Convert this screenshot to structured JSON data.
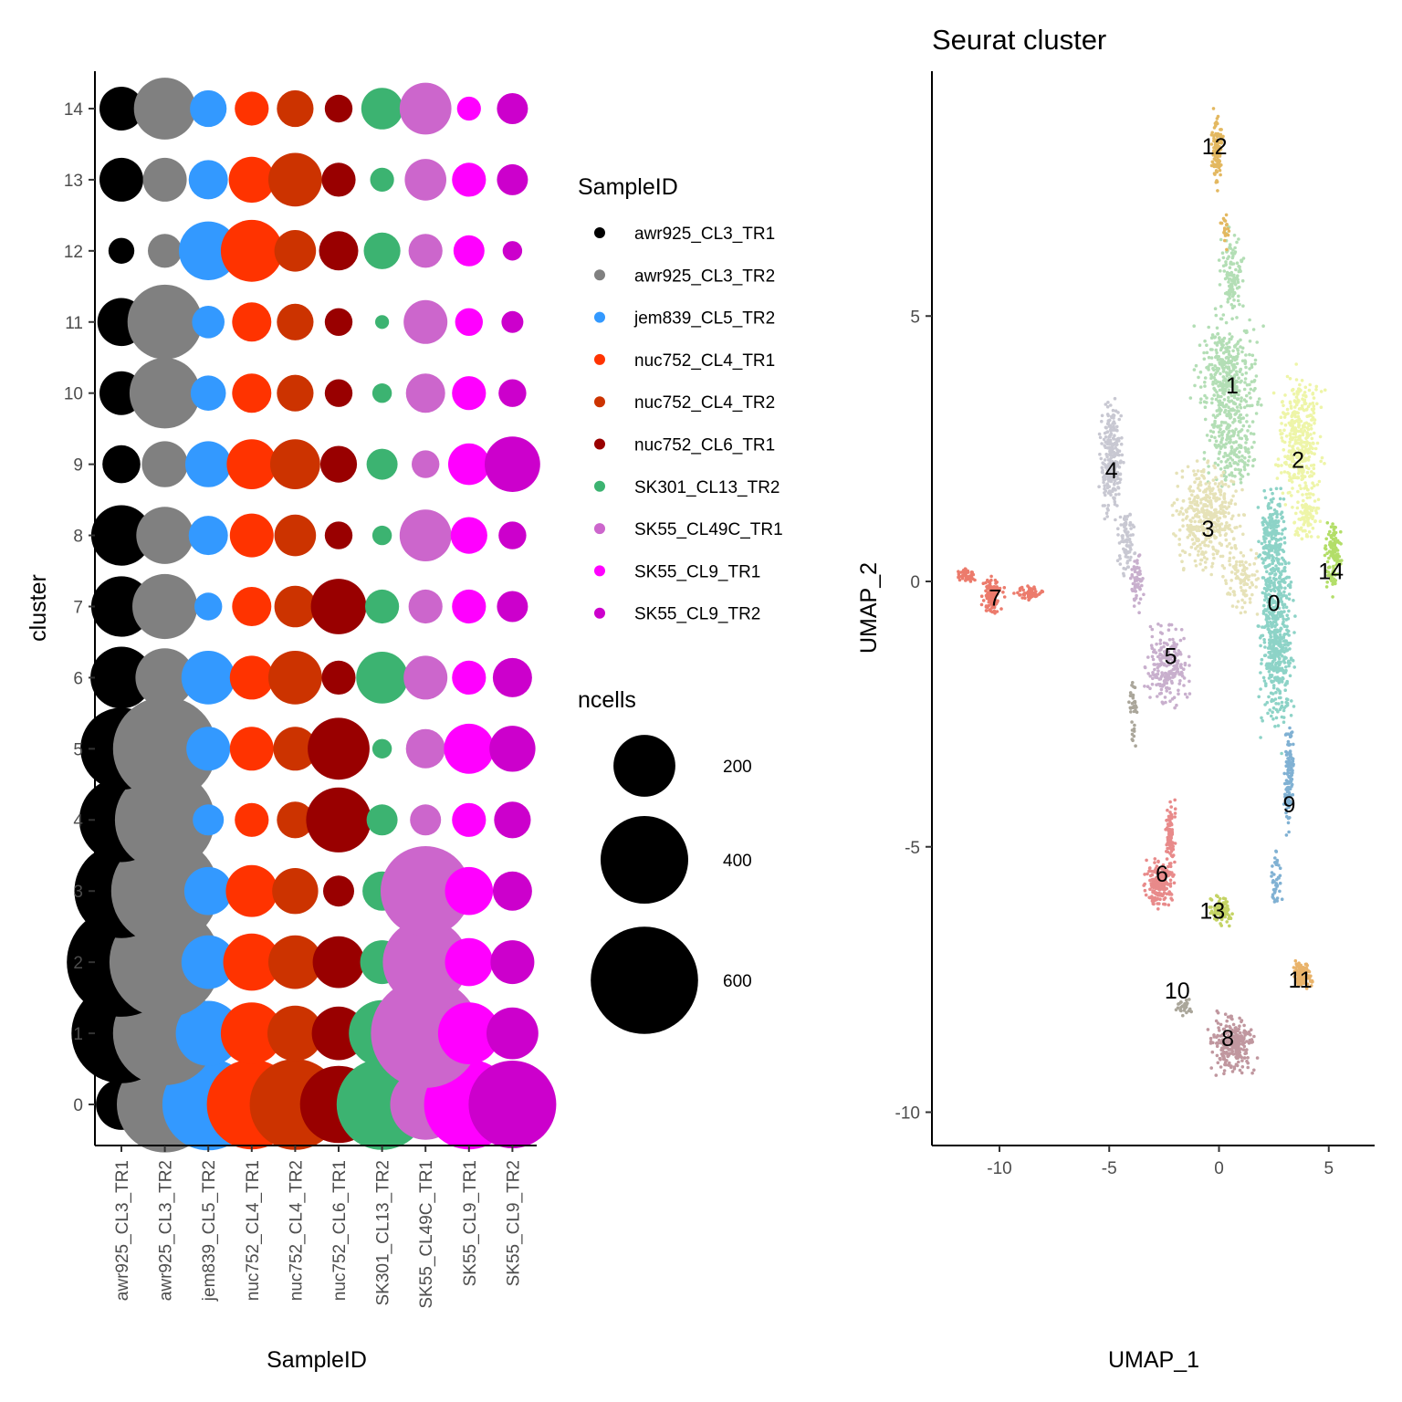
{
  "dotplot": {
    "xlabel": "SampleID",
    "ylabel": "cluster",
    "samples": [
      "awr925_CL3_TR1",
      "awr925_CL3_TR2",
      "jem839_CL5_TR2",
      "nuc752_CL4_TR1",
      "nuc752_CL4_TR2",
      "nuc752_CL6_TR1",
      "SK301_CL13_TR2",
      "SK55_CL49C_TR1",
      "SK55_CL9_TR1",
      "SK55_CL9_TR2"
    ],
    "sample_colors": [
      "#000000",
      "#808080",
      "#3399FF",
      "#FF3300",
      "#CC3300",
      "#990000",
      "#3CB371",
      "#CC66CC",
      "#FF00FF",
      "#CC00CC"
    ],
    "clusters": [
      "0",
      "1",
      "2",
      "3",
      "4",
      "5",
      "6",
      "7",
      "8",
      "9",
      "10",
      "11",
      "12",
      "13",
      "14"
    ]
  },
  "legend": {
    "sample_title": "SampleID",
    "size_title": "ncells",
    "size_breaks": [
      {
        "value": 200,
        "label": "200"
      },
      {
        "value": 400,
        "label": "400"
      },
      {
        "value": 600,
        "label": "600"
      }
    ]
  },
  "umap": {
    "title": "Seurat cluster",
    "xlabel": "UMAP_1",
    "ylabel": "UMAP_2",
    "xticks": [
      {
        "v": -10,
        "label": "-10"
      },
      {
        "v": -5,
        "label": "-5"
      },
      {
        "v": 0,
        "label": "0"
      },
      {
        "v": 5,
        "label": "5"
      }
    ],
    "yticks": [
      {
        "v": -10,
        "label": "-10"
      },
      {
        "v": -5,
        "label": "-5"
      },
      {
        "v": 0,
        "label": "0"
      },
      {
        "v": 5,
        "label": "5"
      }
    ],
    "clusters": [
      {
        "id": "0",
        "color": "#8DD3C7",
        "center": [
          2.5,
          -0.4
        ]
      },
      {
        "id": "1",
        "color": "#B3DEB5",
        "center": [
          0.6,
          3.7
        ]
      },
      {
        "id": "2",
        "color": "#EEF5A8",
        "center": [
          3.6,
          2.3
        ]
      },
      {
        "id": "3",
        "color": "#E6E2B8",
        "center": [
          -0.5,
          1.0
        ]
      },
      {
        "id": "4",
        "color": "#C8C8D2",
        "center": [
          -4.9,
          2.1
        ]
      },
      {
        "id": "5",
        "color": "#C8AFCD",
        "center": [
          -2.2,
          -1.4
        ]
      },
      {
        "id": "6",
        "color": "#E88A8A",
        "center": [
          -2.6,
          -5.5
        ]
      },
      {
        "id": "7",
        "color": "#EC7B6C",
        "center": [
          -10.2,
          -0.3
        ]
      },
      {
        "id": "8",
        "color": "#C0979F",
        "center": [
          0.4,
          -8.6
        ]
      },
      {
        "id": "9",
        "color": "#80B1D3",
        "center": [
          3.2,
          -4.2
        ]
      },
      {
        "id": "10",
        "color": "#AAA69A",
        "center": [
          -1.9,
          -7.7
        ]
      },
      {
        "id": "11",
        "color": "#E9B36A",
        "center": [
          3.7,
          -7.5
        ]
      },
      {
        "id": "12",
        "color": "#E3B860",
        "center": [
          -0.2,
          8.2
        ]
      },
      {
        "id": "13",
        "color": "#C4D364",
        "center": [
          -0.3,
          -6.2
        ]
      },
      {
        "id": "14",
        "color": "#B3DE69",
        "center": [
          5.1,
          0.2
        ]
      }
    ]
  },
  "chart_data": [
    {
      "type": "scatter",
      "xlabel": "SampleID",
      "ylabel": "cluster",
      "categories": [
        "awr925_CL3_TR1",
        "awr925_CL3_TR2",
        "jem839_CL5_TR2",
        "nuc752_CL4_TR1",
        "nuc752_CL4_TR2",
        "nuc752_CL6_TR1",
        "SK301_CL13_TR2",
        "SK55_CL49C_TR1",
        "SK55_CL9_TR1",
        "SK55_CL9_TR2"
      ],
      "size_legend": {
        "title": "ncells",
        "breaks": [
          200,
          400,
          600
        ]
      },
      "ncells": [
        [
          135,
          480,
          440,
          420,
          430,
          310,
          430,
          260,
          420,
          400
        ],
        [
          520,
          560,
          220,
          200,
          160,
          150,
          230,
          620,
          200,
          140
        ],
        [
          620,
          640,
          150,
          170,
          150,
          140,
          100,
          380,
          120,
          100
        ],
        [
          460,
          600,
          120,
          140,
          110,
          50,
          80,
          420,
          120,
          80
        ],
        [
          370,
          520,
          50,
          60,
          70,
          220,
          50,
          50,
          60,
          70
        ],
        [
          350,
          560,
          100,
          100,
          100,
          200,
          20,
          80,
          130,
          110
        ],
        [
          200,
          180,
          150,
          100,
          150,
          60,
          140,
          100,
          60,
          80
        ],
        [
          190,
          220,
          40,
          80,
          90,
          160,
          60,
          60,
          60,
          50
        ],
        [
          190,
          170,
          80,
          100,
          90,
          40,
          20,
          140,
          70,
          40
        ],
        [
          75,
          110,
          110,
          130,
          130,
          70,
          50,
          40,
          90,
          160
        ],
        [
          100,
          260,
          65,
          80,
          70,
          40,
          20,
          80,
          60,
          40
        ],
        [
          120,
          290,
          55,
          80,
          70,
          40,
          10,
          100,
          40,
          25
        ],
        [
          35,
          60,
          180,
          200,
          90,
          80,
          70,
          60,
          50,
          20
        ],
        [
          100,
          100,
          80,
          110,
          150,
          60,
          30,
          90,
          60,
          50
        ],
        [
          100,
          200,
          70,
          60,
          70,
          40,
          90,
          140,
          30,
          50
        ]
      ]
    },
    {
      "type": "scatter",
      "title": "Seurat cluster",
      "xlabel": "UMAP_1",
      "ylabel": "UMAP_2",
      "xlim": [
        -13,
        7
      ],
      "ylim": [
        -10.6,
        8.9
      ],
      "series": [
        {
          "name": "0",
          "x": 2.5,
          "y": -0.4
        },
        {
          "name": "1",
          "x": 0.6,
          "y": 3.7
        },
        {
          "name": "2",
          "x": 3.6,
          "y": 2.3
        },
        {
          "name": "3",
          "x": -0.5,
          "y": 1.0
        },
        {
          "name": "4",
          "x": -4.9,
          "y": 2.1
        },
        {
          "name": "5",
          "x": -2.2,
          "y": -1.4
        },
        {
          "name": "6",
          "x": -2.6,
          "y": -5.5
        },
        {
          "name": "7",
          "x": -10.2,
          "y": -0.3
        },
        {
          "name": "8",
          "x": 0.4,
          "y": -8.6
        },
        {
          "name": "9",
          "x": 3.2,
          "y": -4.2
        },
        {
          "name": "10",
          "x": -1.9,
          "y": -7.7
        },
        {
          "name": "11",
          "x": 3.7,
          "y": -7.5
        },
        {
          "name": "12",
          "x": -0.2,
          "y": 8.2
        },
        {
          "name": "13",
          "x": -0.3,
          "y": -6.2
        },
        {
          "name": "14",
          "x": 5.1,
          "y": 0.2
        }
      ]
    }
  ]
}
